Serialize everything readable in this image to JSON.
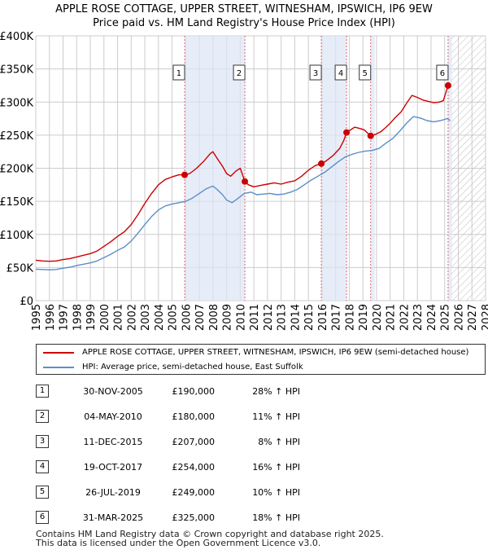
{
  "title_line1": "APPLE ROSE COTTAGE, UPPER STREET, WITNESHAM, IPSWICH, IP6 9EW",
  "title_line2": "Price paid vs. HM Land Registry's House Price Index (HPI)",
  "colors": {
    "property_line": "#cc0000",
    "hpi_line": "#5b8ec8",
    "sale_marker": "#cc0000",
    "vline": "#e06666",
    "shade": "#dde6f5",
    "grid": "#cccccc",
    "hatch": "#bbbbbb"
  },
  "chart_data": {
    "type": "line",
    "x_ticks": [
      1995,
      1996,
      1997,
      1998,
      1999,
      2000,
      2001,
      2002,
      2003,
      2004,
      2005,
      2006,
      2007,
      2008,
      2009,
      2010,
      2011,
      2012,
      2013,
      2014,
      2015,
      2016,
      2017,
      2018,
      2019,
      2020,
      2021,
      2022,
      2023,
      2024,
      2025,
      2026,
      2027,
      2028
    ],
    "x_range": [
      1995,
      2028
    ],
    "y_ticks": [
      0,
      50000,
      100000,
      150000,
      200000,
      250000,
      300000,
      350000,
      400000
    ],
    "y_tick_labels": [
      "£0",
      "£50K",
      "£100K",
      "£150K",
      "£200K",
      "£250K",
      "£300K",
      "£350K",
      "£400K"
    ],
    "y_range": [
      0,
      400000
    ],
    "future_hatch_from": 2025.5,
    "series": [
      {
        "name": "APPLE ROSE COTTAGE, UPPER STREET, WITNESHAM, IPSWICH, IP6 9EW (semi-detached house)",
        "points": [
          [
            1995.0,
            61000
          ],
          [
            1995.5,
            60000
          ],
          [
            1996.0,
            59500
          ],
          [
            1996.5,
            60000
          ],
          [
            1997.0,
            62000
          ],
          [
            1997.5,
            63500
          ],
          [
            1998.0,
            66000
          ],
          [
            1998.5,
            68500
          ],
          [
            1999.0,
            71000
          ],
          [
            1999.5,
            75000
          ],
          [
            2000.0,
            82000
          ],
          [
            2000.5,
            89000
          ],
          [
            2001.0,
            97000
          ],
          [
            2001.5,
            104000
          ],
          [
            2002.0,
            115000
          ],
          [
            2002.5,
            130000
          ],
          [
            2003.0,
            147000
          ],
          [
            2003.5,
            162000
          ],
          [
            2004.0,
            175000
          ],
          [
            2004.5,
            183000
          ],
          [
            2005.0,
            187000
          ],
          [
            2005.5,
            190000
          ],
          [
            2005.92,
            190000
          ],
          [
            2006.3,
            192000
          ],
          [
            2006.8,
            200000
          ],
          [
            2007.3,
            210000
          ],
          [
            2007.8,
            222000
          ],
          [
            2008.0,
            225000
          ],
          [
            2008.3,
            215000
          ],
          [
            2008.7,
            203000
          ],
          [
            2009.0,
            192000
          ],
          [
            2009.3,
            188000
          ],
          [
            2009.7,
            196000
          ],
          [
            2010.0,
            200000
          ],
          [
            2010.34,
            180000
          ],
          [
            2010.6,
            175000
          ],
          [
            2011.0,
            172000
          ],
          [
            2011.5,
            174000
          ],
          [
            2012.0,
            176000
          ],
          [
            2012.5,
            178000
          ],
          [
            2013.0,
            176000
          ],
          [
            2013.5,
            179000
          ],
          [
            2014.0,
            181000
          ],
          [
            2014.5,
            188000
          ],
          [
            2015.0,
            197000
          ],
          [
            2015.5,
            204000
          ],
          [
            2015.95,
            207000
          ],
          [
            2016.3,
            211000
          ],
          [
            2016.8,
            219000
          ],
          [
            2017.3,
            230000
          ],
          [
            2017.6,
            242000
          ],
          [
            2017.8,
            254000
          ],
          [
            2018.1,
            258000
          ],
          [
            2018.4,
            262000
          ],
          [
            2018.8,
            260000
          ],
          [
            2019.1,
            258000
          ],
          [
            2019.4,
            252000
          ],
          [
            2019.57,
            249000
          ],
          [
            2019.9,
            251000
          ],
          [
            2020.3,
            255000
          ],
          [
            2020.7,
            262000
          ],
          [
            2021.0,
            268000
          ],
          [
            2021.4,
            277000
          ],
          [
            2021.8,
            285000
          ],
          [
            2022.2,
            298000
          ],
          [
            2022.6,
            310000
          ],
          [
            2023.0,
            307000
          ],
          [
            2023.4,
            303000
          ],
          [
            2023.8,
            301000
          ],
          [
            2024.2,
            299000
          ],
          [
            2024.6,
            300000
          ],
          [
            2024.9,
            302000
          ],
          [
            2025.25,
            325000
          ],
          [
            2025.4,
            322000
          ]
        ]
      },
      {
        "name": "HPI: Average price, semi-detached house, East Suffolk",
        "points": [
          [
            1995.0,
            47500
          ],
          [
            1995.5,
            47000
          ],
          [
            1996.0,
            46500
          ],
          [
            1996.5,
            47000
          ],
          [
            1997.0,
            49000
          ],
          [
            1997.5,
            50500
          ],
          [
            1998.0,
            53000
          ],
          [
            1998.5,
            55000
          ],
          [
            1999.0,
            57000
          ],
          [
            1999.5,
            60000
          ],
          [
            2000.0,
            65000
          ],
          [
            2000.5,
            70000
          ],
          [
            2001.0,
            76000
          ],
          [
            2001.5,
            81000
          ],
          [
            2002.0,
            90000
          ],
          [
            2002.5,
            102000
          ],
          [
            2003.0,
            115000
          ],
          [
            2003.5,
            127000
          ],
          [
            2004.0,
            137000
          ],
          [
            2004.5,
            143000
          ],
          [
            2005.0,
            146000
          ],
          [
            2005.5,
            148000
          ],
          [
            2006.0,
            150000
          ],
          [
            2006.5,
            155000
          ],
          [
            2007.0,
            162000
          ],
          [
            2007.5,
            169000
          ],
          [
            2008.0,
            173000
          ],
          [
            2008.3,
            168000
          ],
          [
            2008.7,
            160000
          ],
          [
            2009.0,
            152000
          ],
          [
            2009.4,
            148000
          ],
          [
            2009.8,
            154000
          ],
          [
            2010.3,
            162000
          ],
          [
            2010.8,
            164000
          ],
          [
            2011.2,
            160000
          ],
          [
            2011.7,
            161000
          ],
          [
            2012.2,
            162000
          ],
          [
            2012.7,
            160000
          ],
          [
            2013.2,
            161000
          ],
          [
            2013.7,
            164000
          ],
          [
            2014.2,
            168000
          ],
          [
            2014.7,
            175000
          ],
          [
            2015.2,
            182000
          ],
          [
            2015.7,
            188000
          ],
          [
            2016.2,
            194000
          ],
          [
            2016.7,
            202000
          ],
          [
            2017.2,
            210000
          ],
          [
            2017.7,
            217000
          ],
          [
            2018.2,
            221000
          ],
          [
            2018.7,
            224000
          ],
          [
            2019.2,
            226000
          ],
          [
            2019.7,
            227000
          ],
          [
            2020.2,
            230000
          ],
          [
            2020.7,
            238000
          ],
          [
            2021.2,
            245000
          ],
          [
            2021.7,
            256000
          ],
          [
            2022.2,
            268000
          ],
          [
            2022.7,
            278000
          ],
          [
            2023.2,
            276000
          ],
          [
            2023.7,
            272000
          ],
          [
            2024.2,
            270000
          ],
          [
            2024.7,
            272000
          ],
          [
            2025.2,
            275000
          ],
          [
            2025.4,
            272000
          ]
        ]
      }
    ],
    "sales": [
      {
        "id": "1",
        "x": 2005.92,
        "price": 190000,
        "date": "30-NOV-2005",
        "price_label": "£190,000",
        "hpi_label": "28% ↑ HPI"
      },
      {
        "id": "2",
        "x": 2010.34,
        "price": 180000,
        "date": "04-MAY-2010",
        "price_label": "£180,000",
        "hpi_label": "11% ↑ HPI"
      },
      {
        "id": "3",
        "x": 2015.95,
        "price": 207000,
        "date": "11-DEC-2015",
        "price_label": "£207,000",
        "hpi_label": "8% ↑ HPI"
      },
      {
        "id": "4",
        "x": 2017.8,
        "price": 254000,
        "date": "19-OCT-2017",
        "price_label": "£254,000",
        "hpi_label": "16% ↑ HPI"
      },
      {
        "id": "5",
        "x": 2019.57,
        "price": 249000,
        "date": "26-JUL-2019",
        "price_label": "£249,000",
        "hpi_label": "10% ↑ HPI"
      },
      {
        "id": "6",
        "x": 2025.25,
        "price": 325000,
        "date": "31-MAR-2025",
        "price_label": "£325,000",
        "hpi_label": "18% ↑ HPI"
      }
    ]
  },
  "legend": {
    "property_label": "APPLE ROSE COTTAGE, UPPER STREET, WITNESHAM, IPSWICH, IP6 9EW (semi-detached house)",
    "hpi_label": "HPI: Average price, semi-detached house, East Suffolk"
  },
  "footer": {
    "line1": "Contains HM Land Registry data © Crown copyright and database right 2025.",
    "line2": "This data is licensed under the Open Government Licence v3.0."
  }
}
